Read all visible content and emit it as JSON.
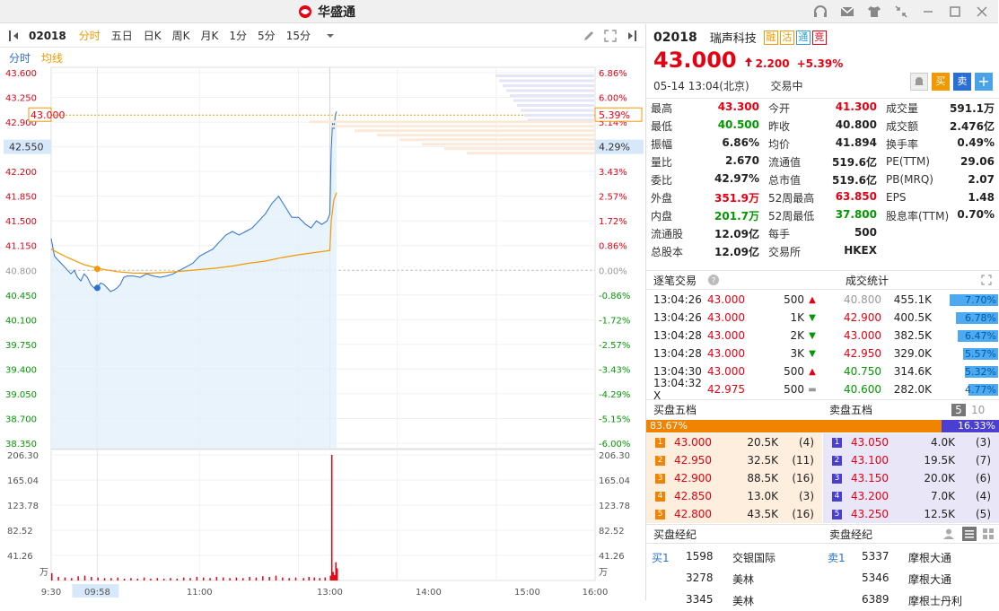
{
  "app": {
    "title": "华盛通"
  },
  "toolbar": {
    "code": "02018",
    "periods": [
      "分时",
      "五日",
      "日K",
      "周K",
      "月K",
      "1分",
      "5分",
      "15分"
    ],
    "active_period": "分时"
  },
  "legend": {
    "price": "分时",
    "avg": "均线"
  },
  "quote": {
    "code": "02018",
    "name": "瑞声科技",
    "tags": [
      "融",
      "沽",
      "通",
      "竞"
    ],
    "price": "43.000",
    "change": "2.200",
    "change_pct": "+5.39%",
    "date": "05-14",
    "time": "13:04(北京)",
    "status": "交易中",
    "buy_label": "买",
    "sell_label": "卖",
    "add_label": "+"
  },
  "stats": [
    [
      {
        "label": "最高",
        "value": "43.300",
        "color": "red"
      },
      {
        "label": "今开",
        "value": "41.300",
        "color": "red"
      },
      {
        "label": "成交量",
        "value": "591.1万",
        "color": ""
      }
    ],
    [
      {
        "label": "最低",
        "value": "40.500",
        "color": "green"
      },
      {
        "label": "昨收",
        "value": "40.800",
        "color": ""
      },
      {
        "label": "成交额",
        "value": "2.476亿",
        "color": ""
      }
    ],
    [
      {
        "label": "振幅",
        "value": "6.86%",
        "color": ""
      },
      {
        "label": "均价",
        "value": "41.894",
        "color": ""
      },
      {
        "label": "换手率",
        "value": "0.49%",
        "color": ""
      }
    ],
    [
      {
        "label": "量比",
        "value": "2.670",
        "color": ""
      },
      {
        "label": "流通值",
        "value": "519.6亿",
        "color": ""
      },
      {
        "label": "PE(TTM)",
        "value": "29.06",
        "color": ""
      }
    ],
    [
      {
        "label": "委比",
        "value": "42.97%",
        "color": ""
      },
      {
        "label": "总市值",
        "value": "519.6亿",
        "color": ""
      },
      {
        "label": "PB(MRQ)",
        "value": "2.07",
        "color": ""
      }
    ],
    [
      {
        "label": "外盘",
        "value": "351.9万",
        "color": "red"
      },
      {
        "label": "52周最高",
        "value": "63.850",
        "color": "red"
      },
      {
        "label": "EPS",
        "value": "1.48",
        "color": ""
      }
    ],
    [
      {
        "label": "内盘",
        "value": "201.7万",
        "color": "green"
      },
      {
        "label": "52周最低",
        "value": "37.800",
        "color": "green"
      },
      {
        "label": "股息率(TTM)",
        "value": "0.70%",
        "color": ""
      }
    ],
    [
      {
        "label": "流通股",
        "value": "12.09亿",
        "color": ""
      },
      {
        "label": "每手",
        "value": "500",
        "color": ""
      },
      {
        "label": "",
        "value": "",
        "color": ""
      }
    ],
    [
      {
        "label": "总股本",
        "value": "12.09亿",
        "color": ""
      },
      {
        "label": "交易所",
        "value": "HKEX",
        "color": ""
      },
      {
        "label": "",
        "value": "",
        "color": ""
      }
    ]
  ],
  "trades_section": {
    "title": "逐笔交易",
    "stats_title": "成交统计"
  },
  "trades": [
    {
      "time": "13:04:26",
      "price": "43.000",
      "vol": "500",
      "dir": "up"
    },
    {
      "time": "13:04:26",
      "price": "43.000",
      "vol": "1K",
      "dir": "down"
    },
    {
      "time": "13:04:28",
      "price": "43.000",
      "vol": "2K",
      "dir": "down"
    },
    {
      "time": "13:04:28",
      "price": "43.000",
      "vol": "3K",
      "dir": "down"
    },
    {
      "time": "13:04:30",
      "price": "43.000",
      "vol": "500",
      "dir": "up"
    },
    {
      "time": "13:04:32 X",
      "price": "42.975",
      "vol": "500",
      "dir": "flat"
    }
  ],
  "volume_stats": [
    {
      "price": "40.800",
      "vol": "455.1K",
      "pct": "7.70%",
      "color": "gray",
      "frac": 0.77
    },
    {
      "price": "42.900",
      "vol": "400.5K",
      "pct": "6.78%",
      "color": "red",
      "frac": 0.678
    },
    {
      "price": "43.000",
      "vol": "382.5K",
      "pct": "6.47%",
      "color": "red",
      "frac": 0.647
    },
    {
      "price": "42.950",
      "vol": "329.0K",
      "pct": "5.57%",
      "color": "red",
      "frac": 0.557
    },
    {
      "price": "40.750",
      "vol": "314.6K",
      "pct": "5.32%",
      "color": "green",
      "frac": 0.532
    },
    {
      "price": "40.600",
      "vol": "282.0K",
      "pct": "4.77%",
      "color": "green",
      "frac": 0.477
    }
  ],
  "book_section": {
    "bid_title": "买盘五档",
    "ask_title": "卖盘五档",
    "depth5": "5",
    "depth10": "10",
    "bid_ratio": "83.67%",
    "ask_ratio": "16.33%",
    "bid_frac": 0.8367
  },
  "book": {
    "bids": [
      {
        "lvl": "1",
        "price": "43.000",
        "vol": "20.5K",
        "cnt": "(4)"
      },
      {
        "lvl": "2",
        "price": "42.950",
        "vol": "32.5K",
        "cnt": "(11)"
      },
      {
        "lvl": "3",
        "price": "42.900",
        "vol": "88.5K",
        "cnt": "(16)"
      },
      {
        "lvl": "4",
        "price": "42.850",
        "vol": "13.0K",
        "cnt": "(3)"
      },
      {
        "lvl": "5",
        "price": "42.800",
        "vol": "43.5K",
        "cnt": "(16)"
      }
    ],
    "asks": [
      {
        "lvl": "1",
        "price": "43.050",
        "vol": "4.0K",
        "cnt": "(3)"
      },
      {
        "lvl": "2",
        "price": "43.100",
        "vol": "19.5K",
        "cnt": "(7)"
      },
      {
        "lvl": "3",
        "price": "43.150",
        "vol": "20.0K",
        "cnt": "(6)"
      },
      {
        "lvl": "4",
        "price": "43.200",
        "vol": "7.0K",
        "cnt": "(4)"
      },
      {
        "lvl": "5",
        "price": "43.250",
        "vol": "12.5K",
        "cnt": "(5)"
      }
    ]
  },
  "brokers_section": {
    "bid_title": "买盘经纪",
    "ask_title": "卖盘经纪"
  },
  "brokers": {
    "bids": [
      {
        "lvl": "买1",
        "code": "1598",
        "name": "交银国际"
      },
      {
        "lvl": "",
        "code": "3278",
        "name": "美林"
      },
      {
        "lvl": "",
        "code": "3345",
        "name": "美林"
      }
    ],
    "asks": [
      {
        "lvl": "卖1",
        "code": "5337",
        "name": "摩根大通"
      },
      {
        "lvl": "",
        "code": "5346",
        "name": "摩根大通"
      },
      {
        "lvl": "",
        "code": "6389",
        "name": "摩根士丹利"
      }
    ]
  },
  "chart_data": {
    "type": "line",
    "prev_close": 40.8,
    "ylim": [
      38.35,
      43.6
    ],
    "price_ticks": [
      "43.600",
      "43.250",
      "42.900",
      "42.550",
      "42.200",
      "41.850",
      "41.500",
      "41.150",
      "40.800",
      "40.450",
      "40.100",
      "39.750",
      "39.400",
      "39.050",
      "38.700",
      "38.350"
    ],
    "pct_ticks": [
      "6.86%",
      "6.00%",
      "5.14%",
      "4.29%",
      "3.43%",
      "2.57%",
      "1.72%",
      "0.86%",
      "0.00%",
      "-0.86%",
      "-1.72%",
      "-2.57%",
      "-3.43%",
      "-4.29%",
      "-5.15%",
      "-6.00%"
    ],
    "vol_ticks": [
      "206.30",
      "165.04",
      "123.78",
      "82.52",
      "41.26"
    ],
    "vol_unit": "万",
    "vol_max": 206.3,
    "x_ticks": [
      "9:30",
      "09:58",
      "11:00",
      "13:00",
      "14:00",
      "15:00",
      "16:00"
    ],
    "current_price_label": "43.000",
    "current_pct_label": "5.39%",
    "hover_price_label": "42.550",
    "hover_pct_label": "4.29%",
    "series": [
      {
        "name": "分时",
        "points": [
          [
            0,
            41.25
          ],
          [
            2,
            41.0
          ],
          [
            4,
            40.95
          ],
          [
            6,
            40.9
          ],
          [
            8,
            40.85
          ],
          [
            10,
            40.8
          ],
          [
            12,
            40.75
          ],
          [
            14,
            40.8
          ],
          [
            16,
            40.7
          ],
          [
            18,
            40.65
          ],
          [
            20,
            40.75
          ],
          [
            22,
            40.7
          ],
          [
            24,
            40.6
          ],
          [
            26,
            40.55
          ],
          [
            28,
            40.55
          ],
          [
            30,
            40.62
          ],
          [
            32,
            40.6
          ],
          [
            34,
            40.55
          ],
          [
            36,
            40.5
          ],
          [
            38,
            40.52
          ],
          [
            40,
            40.55
          ],
          [
            42,
            40.6
          ],
          [
            44,
            40.7
          ],
          [
            46,
            40.72
          ],
          [
            50,
            40.72
          ],
          [
            54,
            40.7
          ],
          [
            58,
            40.75
          ],
          [
            62,
            40.72
          ],
          [
            66,
            40.7
          ],
          [
            70,
            40.72
          ],
          [
            74,
            40.75
          ],
          [
            78,
            40.8
          ],
          [
            82,
            40.85
          ],
          [
            86,
            40.9
          ],
          [
            90,
            41.0
          ],
          [
            94,
            41.05
          ],
          [
            98,
            41.1
          ],
          [
            102,
            41.2
          ],
          [
            106,
            41.3
          ],
          [
            110,
            41.35
          ],
          [
            114,
            41.3
          ],
          [
            118,
            41.35
          ],
          [
            122,
            41.4
          ],
          [
            126,
            41.5
          ],
          [
            130,
            41.6
          ],
          [
            134,
            41.75
          ],
          [
            138,
            41.85
          ],
          [
            142,
            41.7
          ],
          [
            146,
            41.55
          ],
          [
            150,
            41.55
          ],
          [
            154,
            41.45
          ],
          [
            158,
            41.4
          ],
          [
            162,
            41.5
          ],
          [
            166,
            41.45
          ],
          [
            170,
            41.5
          ],
          [
            172,
            41.6
          ],
          [
            173,
            42.5
          ],
          [
            174,
            42.9
          ],
          [
            175,
            42.8
          ],
          [
            176,
            43.0
          ],
          [
            177,
            43.05
          ]
        ]
      },
      {
        "name": "均线",
        "points": [
          [
            0,
            41.1
          ],
          [
            10,
            40.98
          ],
          [
            20,
            40.88
          ],
          [
            30,
            40.82
          ],
          [
            40,
            40.78
          ],
          [
            50,
            40.76
          ],
          [
            60,
            40.76
          ],
          [
            70,
            40.77
          ],
          [
            80,
            40.79
          ],
          [
            90,
            40.81
          ],
          [
            100,
            40.83
          ],
          [
            110,
            40.86
          ],
          [
            120,
            40.9
          ],
          [
            130,
            40.93
          ],
          [
            140,
            40.98
          ],
          [
            150,
            41.02
          ],
          [
            160,
            41.05
          ],
          [
            172,
            41.08
          ],
          [
            173,
            41.5
          ],
          [
            175,
            41.8
          ],
          [
            177,
            41.9
          ]
        ]
      }
    ],
    "volume": [
      [
        0,
        12
      ],
      [
        4,
        6
      ],
      [
        8,
        5
      ],
      [
        12,
        4
      ],
      [
        16,
        7
      ],
      [
        20,
        8
      ],
      [
        24,
        6
      ],
      [
        28,
        5
      ],
      [
        32,
        4
      ],
      [
        36,
        4
      ],
      [
        40,
        5
      ],
      [
        44,
        3
      ],
      [
        48,
        4
      ],
      [
        52,
        3
      ],
      [
        56,
        5
      ],
      [
        60,
        3
      ],
      [
        64,
        4
      ],
      [
        68,
        3
      ],
      [
        72,
        4
      ],
      [
        76,
        3
      ],
      [
        80,
        5
      ],
      [
        84,
        4
      ],
      [
        88,
        6
      ],
      [
        92,
        5
      ],
      [
        96,
        4
      ],
      [
        100,
        6
      ],
      [
        104,
        5
      ],
      [
        108,
        4
      ],
      [
        112,
        5
      ],
      [
        116,
        4
      ],
      [
        120,
        6
      ],
      [
        124,
        5
      ],
      [
        128,
        7
      ],
      [
        132,
        6
      ],
      [
        136,
        8
      ],
      [
        140,
        5
      ],
      [
        144,
        4
      ],
      [
        148,
        5
      ],
      [
        152,
        4
      ],
      [
        156,
        6
      ],
      [
        160,
        5
      ],
      [
        164,
        4
      ],
      [
        168,
        5
      ],
      [
        172,
        8
      ],
      [
        173,
        206.3
      ],
      [
        174,
        14
      ],
      [
        175,
        9
      ],
      [
        176,
        30
      ],
      [
        177,
        20
      ]
    ]
  }
}
